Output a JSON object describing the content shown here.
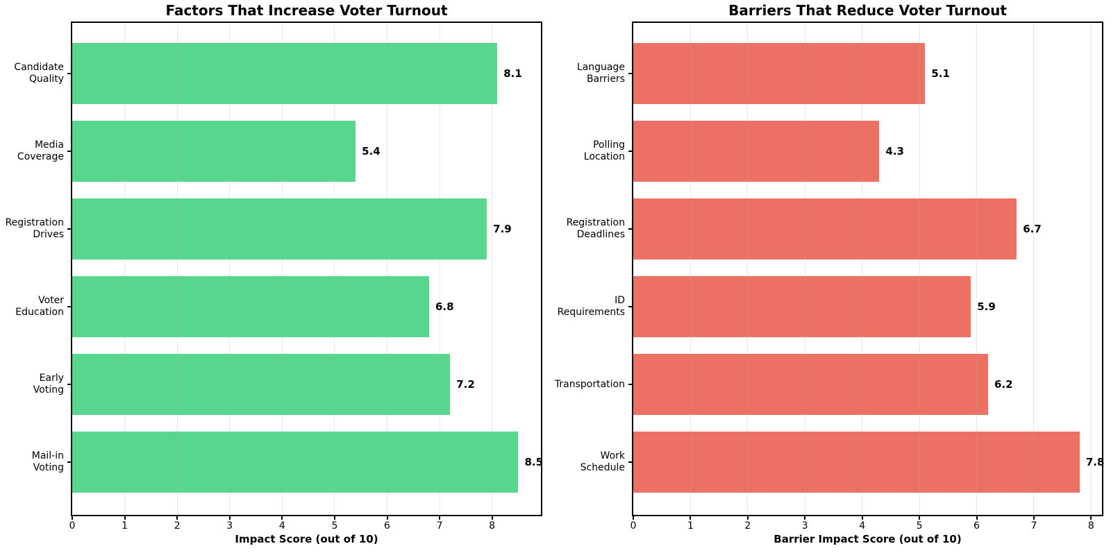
{
  "figure": {
    "background": "#ffffff",
    "text_color": "#000000",
    "spine_color": "#000000",
    "grid_color": "rgba(176,176,176,0.3)"
  },
  "chart_data": [
    {
      "type": "bar",
      "orientation": "horizontal",
      "title": "Factors That Increase Voter Turnout",
      "xlabel": "Impact Score (out of 10)",
      "categories": [
        "Candidate\nQuality",
        "Media\nCoverage",
        "Registration\nDrives",
        "Voter\nEducation",
        "Early\nVoting",
        "Mail-in\nVoting"
      ],
      "values": [
        8.1,
        5.4,
        7.9,
        6.8,
        7.2,
        8.5
      ],
      "value_labels": [
        "8.1",
        "5.4",
        "7.9",
        "6.8",
        "7.2",
        "8.5"
      ],
      "bar_color": "#58d68d",
      "xlim": [
        0,
        8.93
      ],
      "xticks": [
        0,
        1,
        2,
        3,
        4,
        5,
        6,
        7,
        8
      ],
      "grid": "x",
      "legend": "none"
    },
    {
      "type": "bar",
      "orientation": "horizontal",
      "title": "Barriers That Reduce Voter Turnout",
      "xlabel": "Barrier Impact Score (out of 10)",
      "categories": [
        "Language\nBarriers",
        "Polling\nLocation",
        "Registration\nDeadlines",
        "ID\nRequirements",
        "Transportation",
        "Work\nSchedule"
      ],
      "values": [
        5.1,
        4.3,
        6.7,
        5.9,
        6.2,
        7.8
      ],
      "value_labels": [
        "5.1",
        "4.3",
        "6.7",
        "5.9",
        "6.2",
        "7.8"
      ],
      "bar_color": "#ec7063",
      "xlim": [
        0,
        8.19
      ],
      "xticks": [
        0,
        1,
        2,
        3,
        4,
        5,
        6,
        7,
        8
      ],
      "grid": "x",
      "legend": "none"
    }
  ]
}
